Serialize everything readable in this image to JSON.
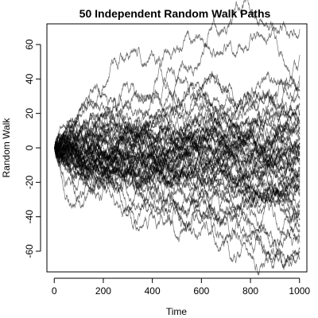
{
  "chart_data": {
    "type": "line",
    "title": "50 Independent Random Walk Paths",
    "xlabel": "Time",
    "ylabel": "Random Walk",
    "xlim": [
      -30,
      1030
    ],
    "ylim": [
      -72,
      72
    ],
    "x_ticks": [
      0,
      200,
      400,
      600,
      800,
      1000
    ],
    "x_tick_labels": [
      "0",
      "200",
      "400",
      "600",
      "800",
      "1000"
    ],
    "y_ticks": [
      -60,
      -40,
      -20,
      0,
      20,
      40,
      60
    ],
    "y_tick_labels": [
      "-60",
      "-40",
      "-20",
      "0",
      "20",
      "40",
      "60"
    ],
    "grid": false,
    "legend": "none",
    "line_color": "#000000",
    "n_series": 50,
    "steps_per_series": 1000,
    "approx_final_values": [
      69,
      54,
      42,
      38,
      33,
      28,
      25,
      22,
      19,
      16,
      14,
      12,
      10,
      8,
      6,
      5,
      3,
      2,
      1,
      0,
      -1,
      -2,
      -4,
      -5,
      -6,
      -8,
      -9,
      -11,
      -12,
      -14,
      -15,
      -17,
      -18,
      -20,
      -22,
      -24,
      -26,
      -28,
      -30,
      -33,
      -36,
      -39,
      -42,
      -45,
      -48,
      -52,
      -55,
      -58,
      -60,
      -64
    ]
  }
}
